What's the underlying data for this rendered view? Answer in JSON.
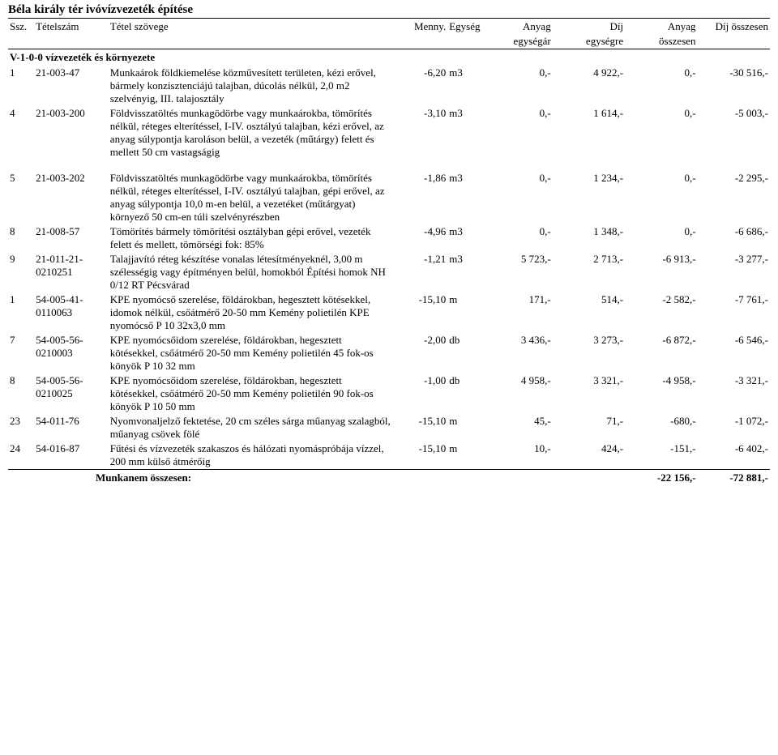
{
  "title": "Béla király tér ivóvízvezeték építése",
  "headers": {
    "ssz": "Ssz.",
    "tetelszam": "Tételszám",
    "tetel_szovege": "Tétel szövege",
    "menny": "Menny.",
    "egyseg": "Egység",
    "anyag_egysegar_l1": "Anyag",
    "anyag_egysegar_l2": "egységár",
    "dij_egysegre_l1": "Díj",
    "dij_egysegre_l2": "egységre",
    "anyag_osszesen_l1": "Anyag",
    "anyag_osszesen_l2": "összesen",
    "dij_osszesen": "Díj összesen"
  },
  "section_title": "V-1-0-0 vízvezeték és környezete",
  "rows": [
    {
      "ssz": "1",
      "tsz": "21-003-47",
      "desc": "Munkaárok földkiemelése közművesített területen, kézi erővel, bármely konzisztenciájú talajban, dúcolás nélkül, 2,0 m2 szelvényig, III. talajosztály",
      "qty": "-6,20",
      "unit": "m3",
      "aue": "0,-",
      "due": "4 922,-",
      "ao": "0,-",
      "do": "-30 516,-"
    },
    {
      "ssz": "4",
      "tsz": "21-003-200",
      "desc": "Földvisszatöltés munkagödörbe vagy munkaárokba, tömörítés nélkül, réteges elterítéssel, I-IV. osztályú talajban, kézi erővel, az anyag súlypontja karoláson belül, a vezeték (műtárgy) felett és mellett 50 cm vastagságig",
      "qty": "-3,10",
      "unit": "m3",
      "aue": "0,-",
      "due": "1 614,-",
      "ao": "0,-",
      "do": "-5 003,-"
    },
    {
      "ssz": "5",
      "tsz": "21-003-202",
      "desc": "Földvisszatöltés munkagödörbe vagy munkaárokba, tömörítés nélkül, réteges elterítéssel, I-IV. osztályú talajban, gépi erővel, az anyag súlypontja 10,0 m-en belül, a vezetéket (műtárgyat) környező 50 cm-en túli szelvényrészben",
      "qty": "-1,86",
      "unit": "m3",
      "aue": "0,-",
      "due": "1 234,-",
      "ao": "0,-",
      "do": "-2 295,-"
    },
    {
      "ssz": "8",
      "tsz": "21-008-57",
      "desc": "Tömörítés bármely tömörítési osztályban gépi erővel, vezeték felett és mellett, tömörségi fok: 85%",
      "qty": "-4,96",
      "unit": "m3",
      "aue": "0,-",
      "due": "1 348,-",
      "ao": "0,-",
      "do": "-6 686,-"
    },
    {
      "ssz": "9",
      "tsz": "21-011-21-0210251",
      "desc": "Talajjavító réteg készítése vonalas létesítményeknél, 3,00 m szélességig vagy építményen belül, homokból  Építési homok NH 0/12 RT Pécsvárad",
      "qty": "-1,21",
      "unit": "m3",
      "aue": "5 723,-",
      "due": "2 713,-",
      "ao": "-6 913,-",
      "do": "-3 277,-"
    },
    {
      "ssz": "1",
      "tsz": "54-005-41-0110063",
      "desc": "KPE nyomócső szerelése, földárokban, hegesztett kötésekkel, idomok nélkül, csőátmérő 20-50 mm  Kemény polietilén KPE nyomócső P 10   32x3,0 mm",
      "qty": "-15,10",
      "unit": "m",
      "aue": "171,-",
      "due": "514,-",
      "ao": "-2 582,-",
      "do": "-7 761,-"
    },
    {
      "ssz": "7",
      "tsz": "54-005-56-0210003",
      "desc": "KPE nyomócsőidom szerelése, földárokban, hegesztett kötésekkel, csőátmérő 20-50 mm Kemény polietilén 45 fok-os könyök P 10   32 mm",
      "qty": "-2,00",
      "unit": "db",
      "aue": "3 436,-",
      "due": "3 273,-",
      "ao": "-6 872,-",
      "do": "-6 546,-"
    },
    {
      "ssz": "8",
      "tsz": "54-005-56-0210025",
      "desc": "KPE nyomócsőidom szerelése, földárokban, hegesztett kötésekkel, csőátmérő 20-50 mm Kemény polietilén 90 fok-os könyök P 10   50 mm",
      "qty": "-1,00",
      "unit": "db",
      "aue": "4 958,-",
      "due": "3 321,-",
      "ao": "-4 958,-",
      "do": "-3 321,-"
    },
    {
      "ssz": "23",
      "tsz": "54-011-76",
      "desc": "Nyomvonaljelző fektetése, 20 cm széles sárga műanyag szalagból, műanyag csövek fölé",
      "qty": "-15,10",
      "unit": "m",
      "aue": "45,-",
      "due": "71,-",
      "ao": "-680,-",
      "do": "-1 072,-"
    },
    {
      "ssz": "24",
      "tsz": "54-016-87",
      "desc": "Fűtési és vízvezeték szakaszos és hálózati nyomáspróbája vízzel, 200 mm külső átmérőig",
      "qty": "-15,10",
      "unit": "m",
      "aue": "10,-",
      "due": "424,-",
      "ao": "-151,-",
      "do": "-6 402,-"
    }
  ],
  "summary": {
    "label": "Munkanem összesen:",
    "ao": "-22 156,-",
    "do": "-72 881,-"
  }
}
